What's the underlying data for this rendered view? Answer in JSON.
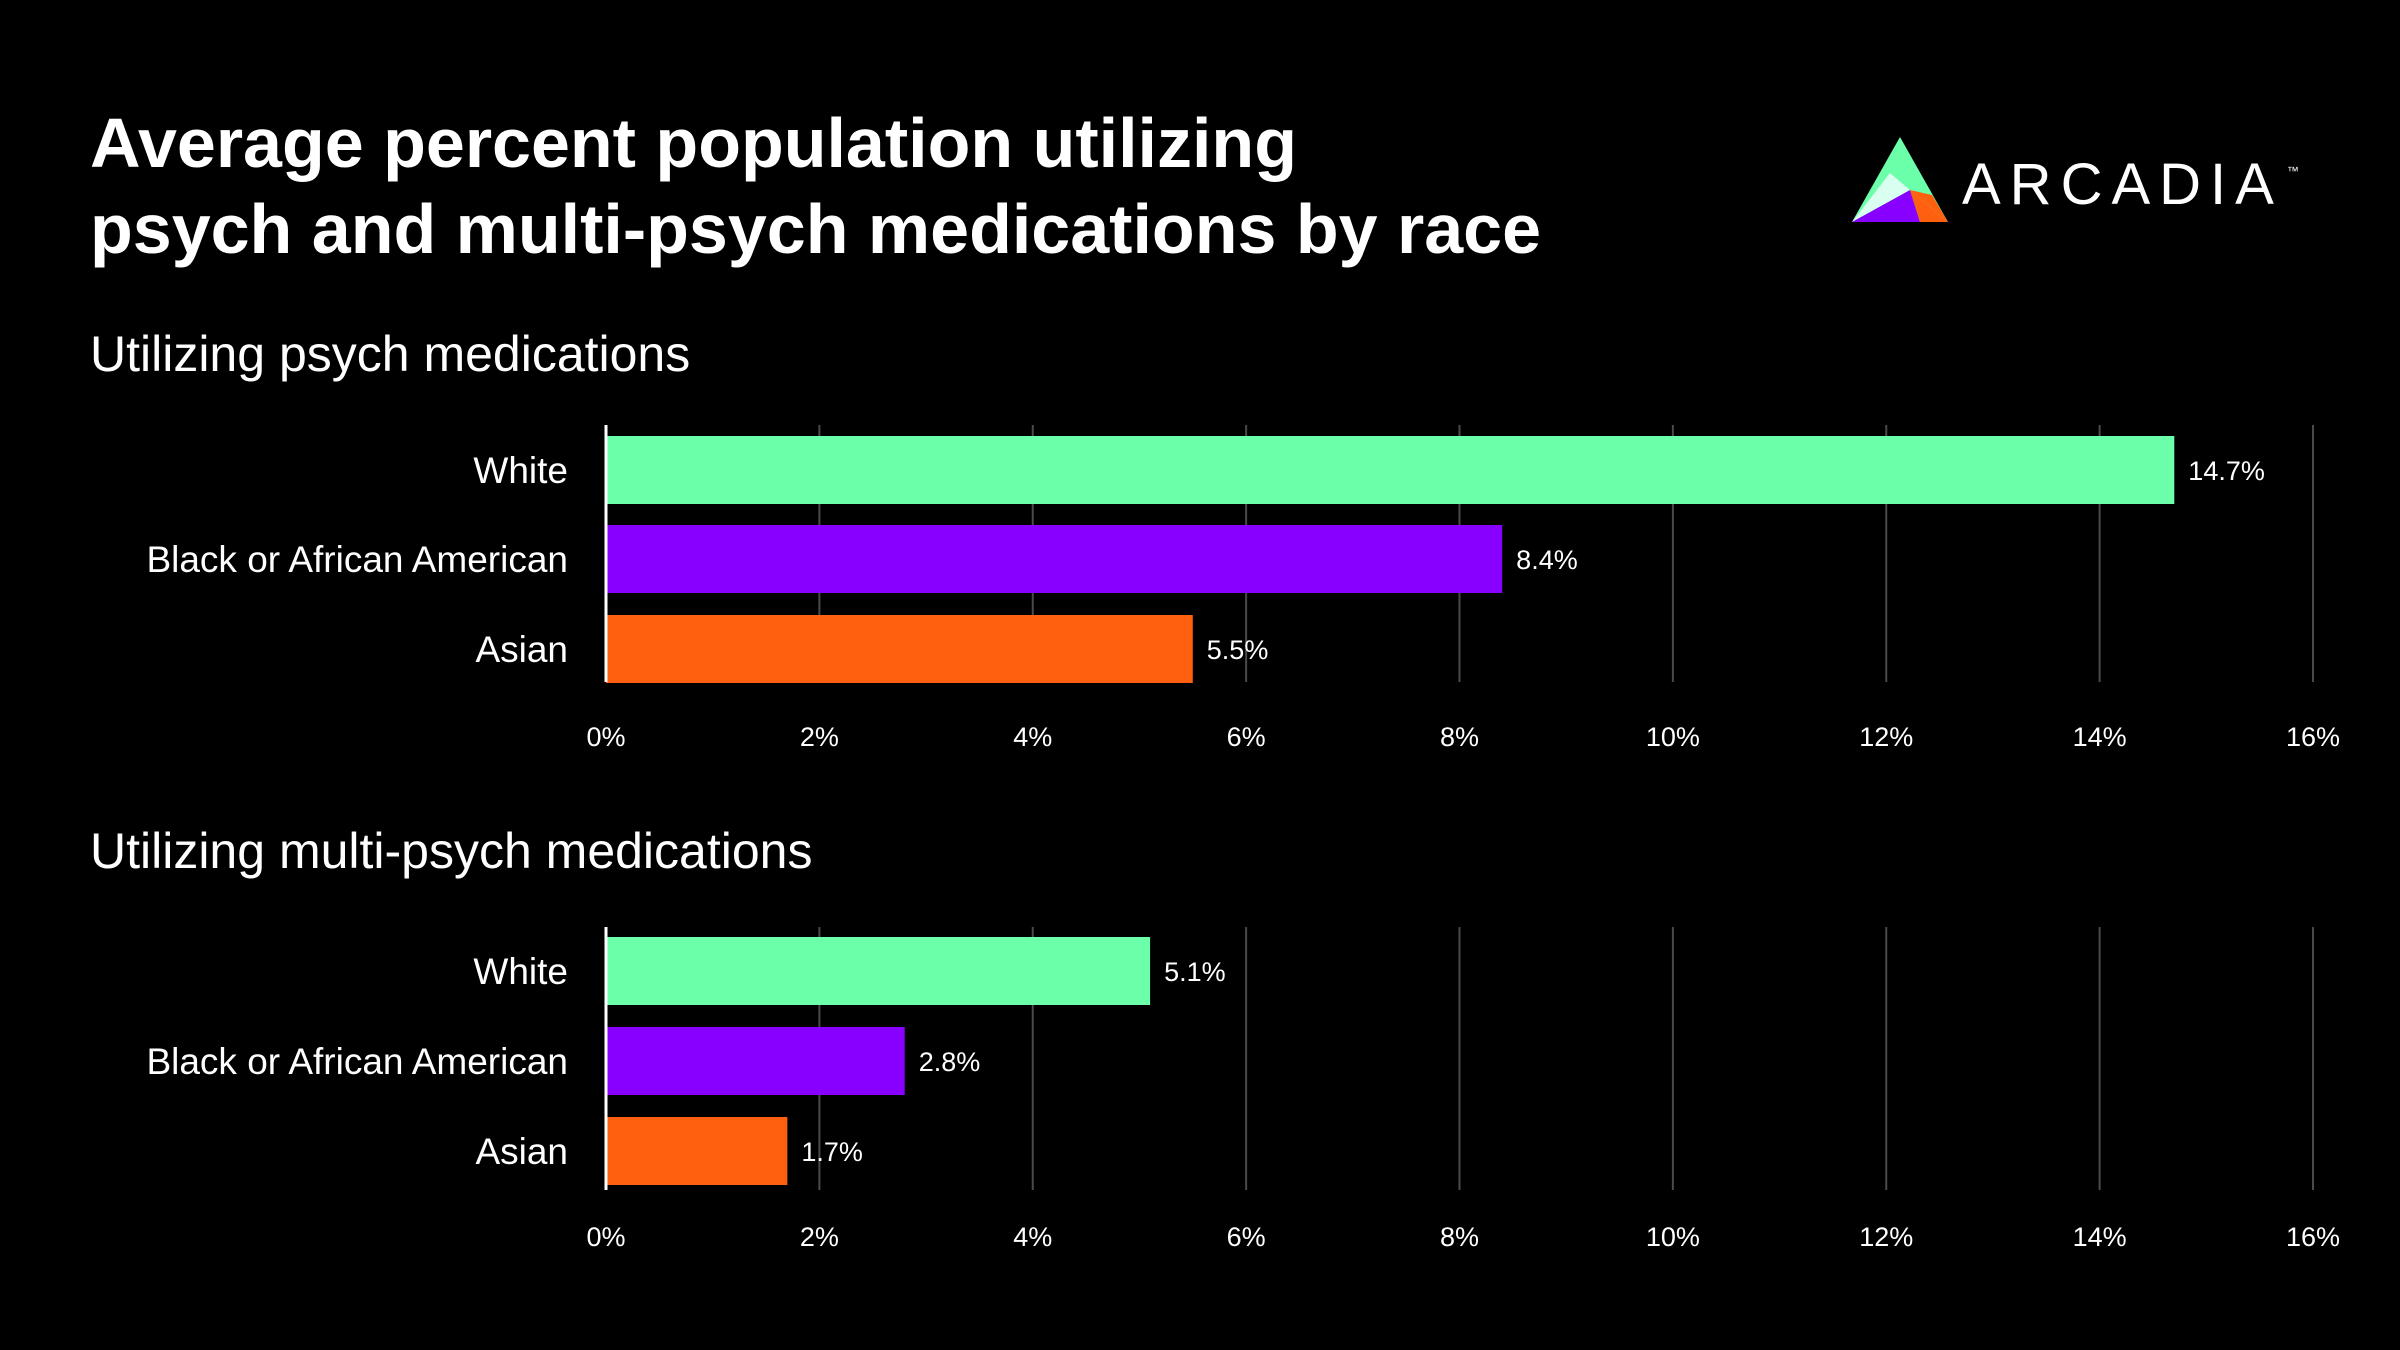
{
  "title_line1": "Average percent population utilizing",
  "title_line2": "psych and multi-psych medications by race",
  "logo": {
    "text": "ARCADIA",
    "tm": "™",
    "colors": [
      "#6CFFAA",
      "#8800FF",
      "#FF6010",
      "#D8FFF0"
    ]
  },
  "chart_data": [
    {
      "type": "bar",
      "orientation": "horizontal",
      "title": "Utilizing psych medications",
      "categories": [
        "White",
        "Black or African American",
        "Asian"
      ],
      "values": [
        14.7,
        8.4,
        5.5
      ],
      "data_labels": [
        "14.7%",
        "8.4%",
        "5.5%"
      ],
      "colors": [
        "#6CFFAA",
        "#8800FF",
        "#FF6010"
      ],
      "xlim": [
        0,
        16
      ],
      "xticks": [
        "0%",
        "2%",
        "4%",
        "6%",
        "8%",
        "10%",
        "12%",
        "14%",
        "16%"
      ],
      "grid": true
    },
    {
      "type": "bar",
      "orientation": "horizontal",
      "title": "Utilizing multi-psych medications",
      "categories": [
        "White",
        "Black or African American",
        "Asian"
      ],
      "values": [
        5.1,
        2.8,
        1.7
      ],
      "data_labels": [
        "5.1%",
        "2.8%",
        "1.7%"
      ],
      "colors": [
        "#6CFFAA",
        "#8800FF",
        "#FF6010"
      ],
      "xlim": [
        0,
        16
      ],
      "xticks": [
        "0%",
        "2%",
        "4%",
        "6%",
        "8%",
        "10%",
        "12%",
        "14%",
        "16%"
      ],
      "grid": true
    }
  ]
}
